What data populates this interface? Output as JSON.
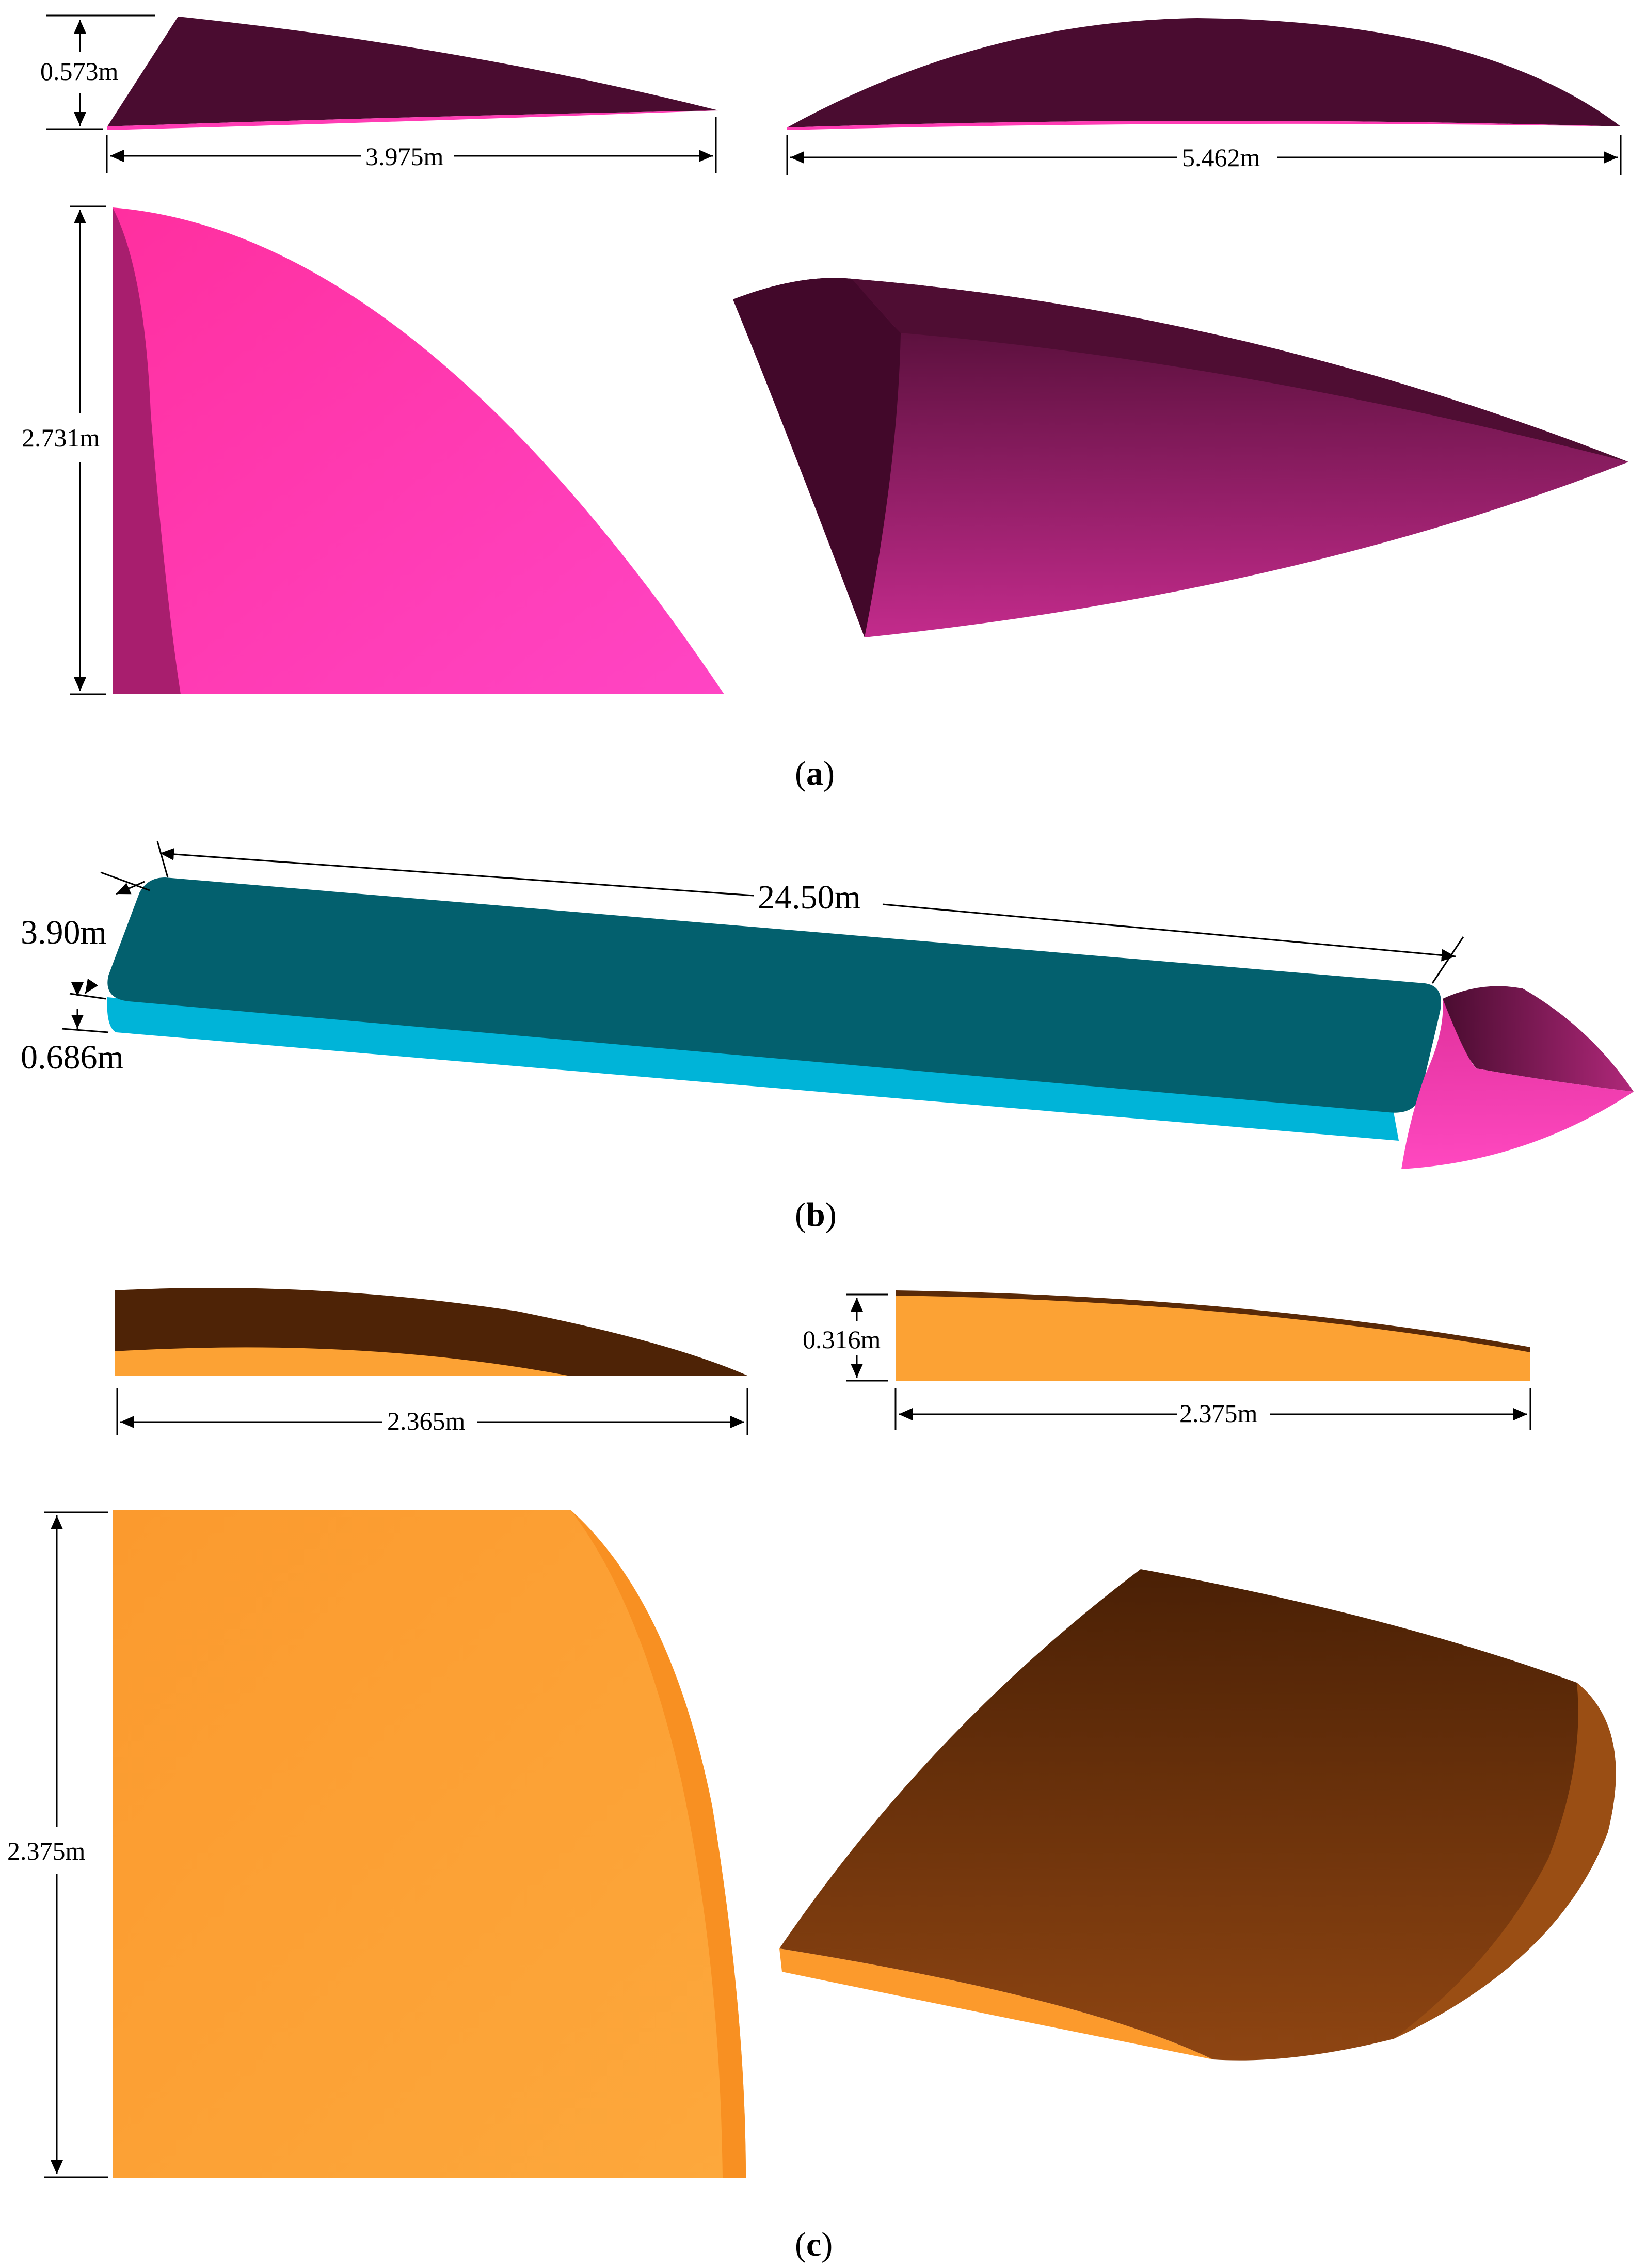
{
  "panel_a": {
    "caption": {
      "open": "(",
      "letter": "a",
      "close": ")"
    },
    "dimensions": {
      "height_side": "0.573m",
      "length_side": "3.975m",
      "span_front": "5.462m",
      "span_plan": "2.731m"
    },
    "colors": {
      "light": "#ff3cb4",
      "mid": "#b0287a",
      "dark": "#4a0c30"
    }
  },
  "panel_b": {
    "caption": {
      "open": "(",
      "letter": "b",
      "close": ")"
    },
    "dimensions": {
      "length": "24.50m",
      "width": "3.90m",
      "thickness": "0.686m"
    },
    "colors": {
      "deck_top": "#03606e",
      "deck_side": "#00b4d8"
    }
  },
  "panel_c": {
    "caption": {
      "open": "(",
      "letter": "c",
      "close": ")"
    },
    "dimensions": {
      "length_side": "2.365m",
      "height_front": "0.316m",
      "length_front": "2.375m",
      "span_plan": "2.375m"
    },
    "colors": {
      "light": "#fca234",
      "dark": "#4e2306",
      "mid": "#8a4210"
    }
  }
}
